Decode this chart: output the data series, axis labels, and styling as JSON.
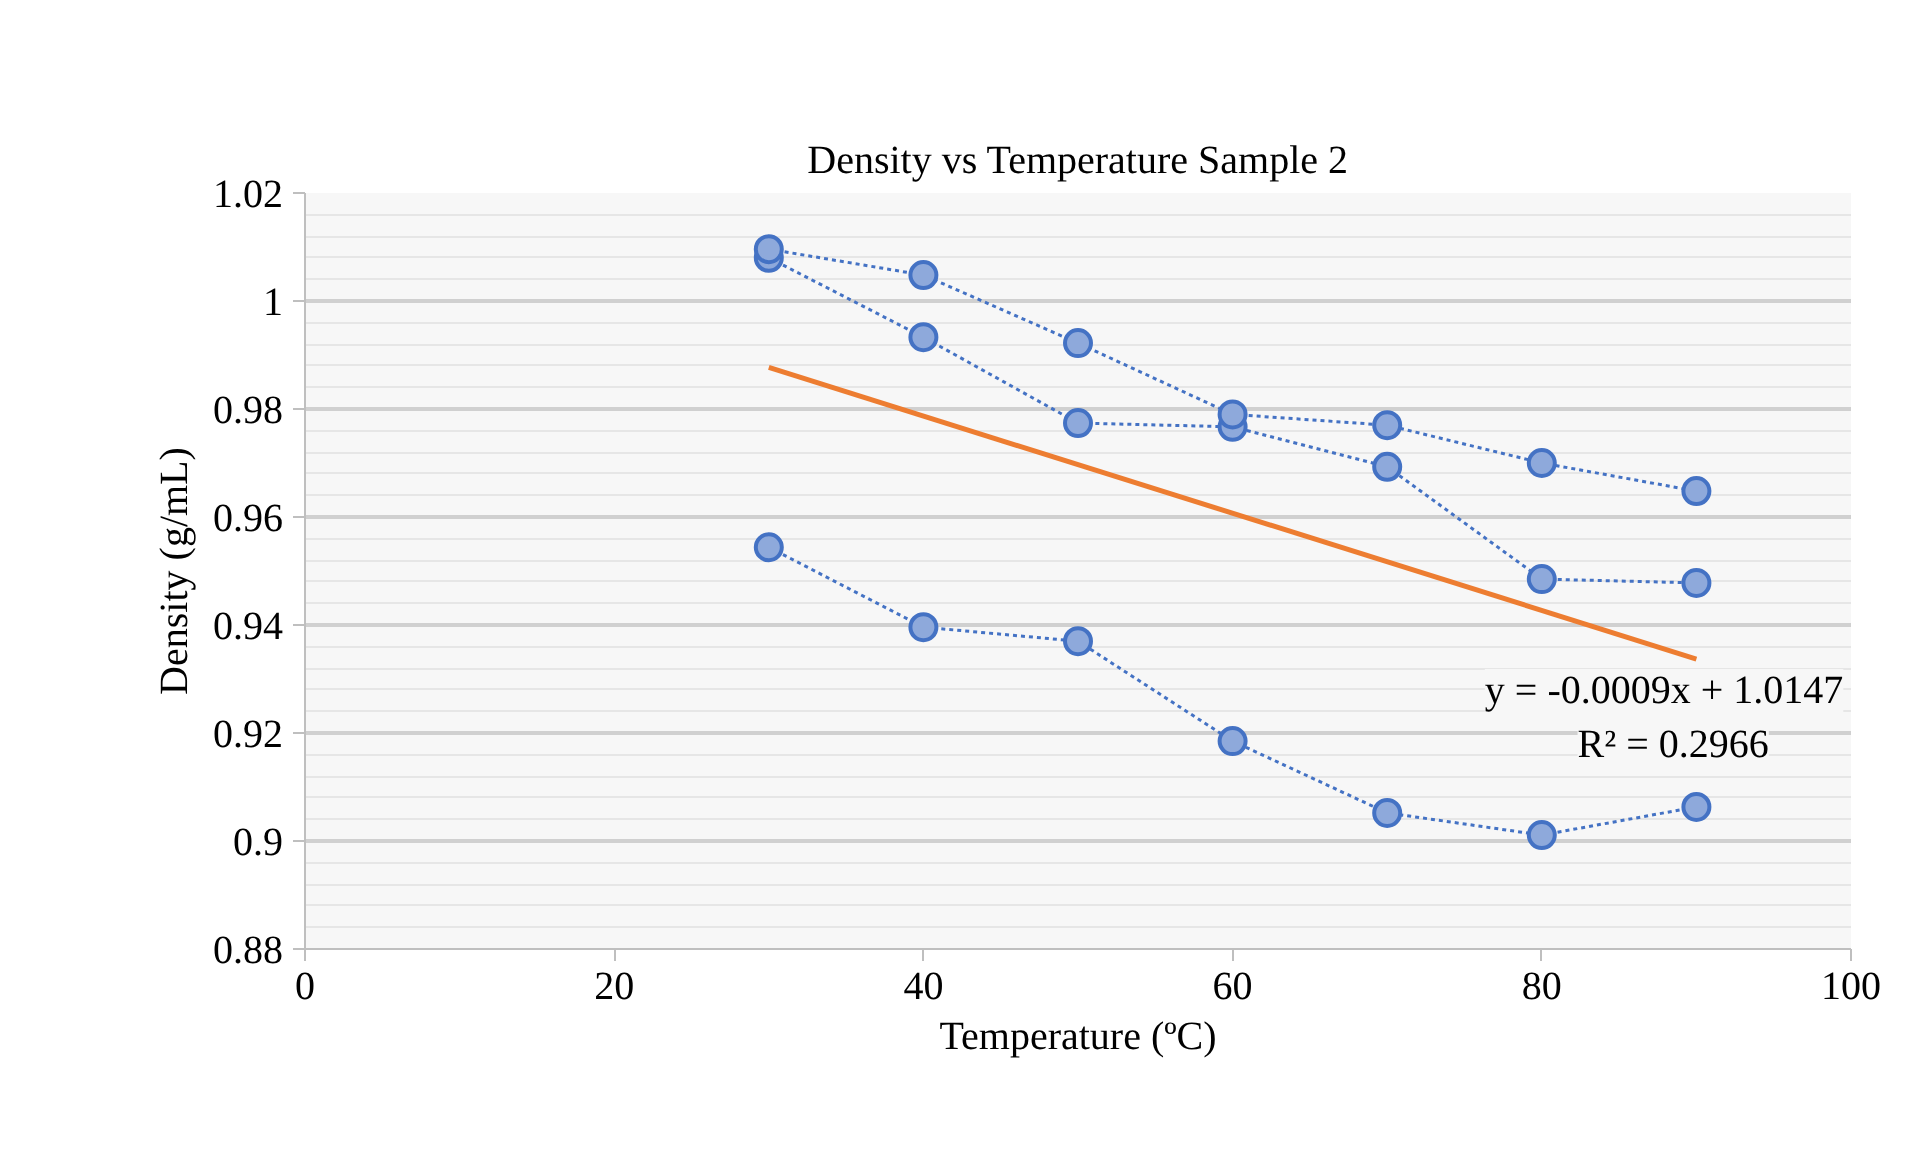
{
  "chart_data": {
    "type": "line",
    "title": "Density vs Temperature Sample 2",
    "xlabel": "Temperature (ºC)",
    "ylabel": "Density (g/mL)",
    "xlim": [
      0,
      100
    ],
    "xticks": [
      0,
      20,
      40,
      60,
      80,
      100
    ],
    "ylim": [
      0.88,
      1.02
    ],
    "yticks": [
      0.88,
      0.9,
      0.92,
      0.94,
      0.96,
      0.98,
      1,
      1.02
    ],
    "grid": "y",
    "x": [
      30,
      40,
      50,
      60,
      70,
      80,
      90
    ],
    "series": [
      {
        "color": "#4472c4",
        "marker": "circle",
        "line_style": "dotted",
        "values": [
          1.0096,
          1.0048,
          0.9922,
          0.979,
          0.977,
          0.97,
          0.9648
        ]
      },
      {
        "color": "#4472c4",
        "marker": "circle",
        "line_style": "dotted",
        "values": [
          1.008,
          0.9933,
          0.9774,
          0.9767,
          0.9693,
          0.9485,
          0.9478
        ]
      },
      {
        "color": "#4472c4",
        "marker": "circle",
        "line_style": "dotted",
        "values": [
          0.9544,
          0.9396,
          0.937,
          0.9185,
          0.9052,
          0.9011,
          0.9063
        ]
      },
      {
        "type": "line",
        "color": "#ed7d31",
        "marker": "none",
        "line_style": "solid",
        "x": [
          30,
          90
        ],
        "values": [
          0.9877,
          0.9337
        ]
      }
    ],
    "annotations": [
      "y = -0.0009x + 1.0147",
      "R² = 0.2966"
    ]
  }
}
